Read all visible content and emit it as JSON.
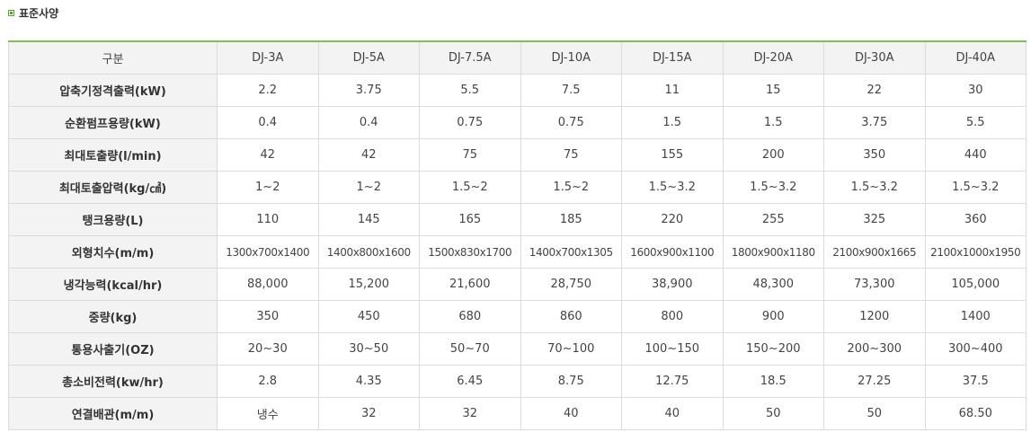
{
  "section": {
    "title": "표준사양"
  },
  "table": {
    "header_label": "구분",
    "models": [
      "DJ-3A",
      "DJ-5A",
      "DJ-7.5A",
      "DJ-10A",
      "DJ-15A",
      "DJ-20A",
      "DJ-30A",
      "DJ-40A"
    ],
    "rows": [
      {
        "label": "압축기정격출력(kW)",
        "values": [
          "2.2",
          "3.75",
          "5.5",
          "7.5",
          "11",
          "15",
          "22",
          "30"
        ]
      },
      {
        "label": "순환펌프용량(kW)",
        "values": [
          "0.4",
          "0.4",
          "0.75",
          "0.75",
          "1.5",
          "1.5",
          "3.75",
          "5.5"
        ]
      },
      {
        "label": "최대토출량(l/min)",
        "values": [
          "42",
          "42",
          "75",
          "75",
          "155",
          "200",
          "350",
          "440"
        ]
      },
      {
        "label": "최대토출압력(kg/㎠)",
        "values": [
          "1~2",
          "1~2",
          "1.5~2",
          "1.5~2",
          "1.5~3.2",
          "1.5~3.2",
          "1.5~3.2",
          "1.5~3.2"
        ]
      },
      {
        "label": "탱크용량(L)",
        "values": [
          "110",
          "145",
          "165",
          "185",
          "220",
          "255",
          "325",
          "360"
        ]
      },
      {
        "label": "외형치수(m/m)",
        "values": [
          "1300x700x1400",
          "1400x800x1600",
          "1500x830x1700",
          "1400x700x1305",
          "1600x900x1100",
          "1800x900x1180",
          "2100x900x1665",
          "2100x1000x1950"
        ]
      },
      {
        "label": "냉각능력(kcal/hr)",
        "values": [
          "88,000",
          "15,200",
          "21,600",
          "28,750",
          "38,900",
          "48,300",
          "73,300",
          "105,000"
        ]
      },
      {
        "label": "중량(kg)",
        "values": [
          "350",
          "450",
          "680",
          "860",
          "800",
          "900",
          "1200",
          "1400"
        ]
      },
      {
        "label": "통용사출기(OZ)",
        "values": [
          "20~30",
          "30~50",
          "50~70",
          "70~100",
          "100~150",
          "150~200",
          "200~300",
          "300~400"
        ]
      },
      {
        "label": "총소비전력(kw/hr)",
        "values": [
          "2.8",
          "4.35",
          "6.45",
          "8.75",
          "12.75",
          "18.5",
          "27.25",
          "37.5"
        ]
      },
      {
        "label": "연결배관(m/m)",
        "values": [
          "냉수",
          "32",
          "32",
          "40",
          "40",
          "50",
          "50",
          "68.50"
        ]
      }
    ]
  }
}
